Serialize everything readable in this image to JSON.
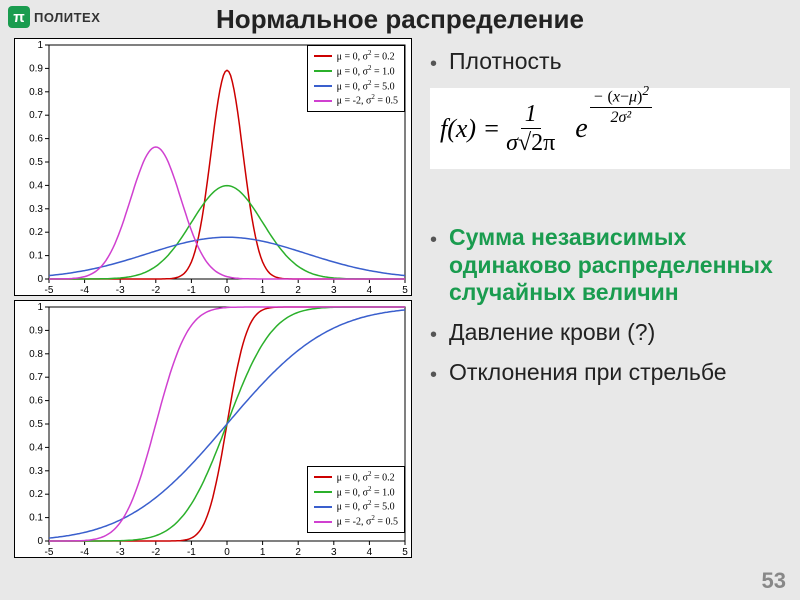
{
  "logo": {
    "icon_text": "π",
    "text": "ПОЛИТЕХ"
  },
  "title": "Нормальное распределение",
  "bullets": [
    {
      "text": "Плотность",
      "style": "normal"
    },
    {
      "text": "Сумма независимых одинаково распределенных случайных величин",
      "style": "green"
    },
    {
      "text": "Давление крови (?)",
      "style": "normal"
    },
    {
      "text": "Отклонения при стрельбе",
      "style": "normal"
    }
  ],
  "formula": {
    "lhs": "f(x) =",
    "frac_num": "1",
    "frac_den_sigma": "σ",
    "frac_den_sqrt": "√2π",
    "e": "e",
    "exp_num": "(x−μ)²",
    "exp_minus": "−",
    "exp_den": "2σ²"
  },
  "page_number": "53",
  "chart_pdf": {
    "type": "line",
    "xlim": [
      -5,
      5
    ],
    "ylim": [
      0,
      1
    ],
    "xtick_step": 1,
    "ytick_step": 0.1,
    "background_color": "#ffffff",
    "axis_color": "#000000",
    "line_width": 1.5,
    "legend_pos": "top-right",
    "series": [
      {
        "label": "μ = 0, σ² = 0.2",
        "color": "#cc0000",
        "mu": 0,
        "sigma2": 0.2
      },
      {
        "label": "μ = 0, σ² = 1.0",
        "color": "#2bb02b",
        "mu": 0,
        "sigma2": 1.0
      },
      {
        "label": "μ = 0, σ² = 5.0",
        "color": "#3a5fcd",
        "mu": 0,
        "sigma2": 5.0
      },
      {
        "label": "μ = -2, σ² = 0.5",
        "color": "#d040d0",
        "mu": -2,
        "sigma2": 0.5
      }
    ]
  },
  "chart_cdf": {
    "type": "line",
    "xlim": [
      -5,
      5
    ],
    "ylim": [
      0,
      1
    ],
    "xtick_step": 1,
    "ytick_step": 0.1,
    "background_color": "#ffffff",
    "axis_color": "#000000",
    "line_width": 1.5,
    "legend_pos": "bottom-right",
    "series": [
      {
        "label": "μ = 0, σ² = 0.2",
        "color": "#cc0000",
        "mu": 0,
        "sigma2": 0.2
      },
      {
        "label": "μ = 0, σ² = 1.0",
        "color": "#2bb02b",
        "mu": 0,
        "sigma2": 1.0
      },
      {
        "label": "μ = 0, σ² = 5.0",
        "color": "#3a5fcd",
        "mu": 0,
        "sigma2": 5.0
      },
      {
        "label": "μ = -2, σ² = 0.5",
        "color": "#d040d0",
        "mu": -2,
        "sigma2": 0.5
      }
    ]
  }
}
